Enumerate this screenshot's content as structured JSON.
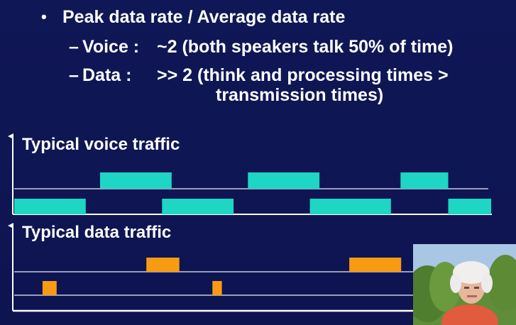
{
  "slide": {
    "bullet_marker": "•",
    "bullet_text": "Peak data rate / Average data rate",
    "sub_items": [
      {
        "dash": "–",
        "label": "Voice :",
        "text": "~2 (both speakers talk 50% of time)"
      },
      {
        "dash": "–",
        "label": "Data :",
        "text": ">> 2 (think and processing times >",
        "continuation": "transmission times)"
      }
    ]
  },
  "voice_diagram": {
    "title": "Typical voice traffic",
    "color": "#1ed6c4",
    "speaker_top_bursts": [
      [
        0.18,
        0.33
      ],
      [
        0.49,
        0.64
      ],
      [
        0.81,
        0.91
      ]
    ],
    "speaker_bottom_bursts": [
      [
        0.0,
        0.15
      ],
      [
        0.31,
        0.46
      ],
      [
        0.62,
        0.79
      ],
      [
        0.91,
        1.0
      ]
    ]
  },
  "data_diagram": {
    "title": "Typical data traffic",
    "color": "#f79b12",
    "flow_top_bursts": [
      [
        0.28,
        0.35
      ],
      [
        0.71,
        0.82
      ]
    ],
    "flow_bottom_bursts": [
      [
        0.06,
        0.09
      ],
      [
        0.42,
        0.44
      ]
    ]
  },
  "webcam": {
    "icon": "presenter-video-icon"
  }
}
